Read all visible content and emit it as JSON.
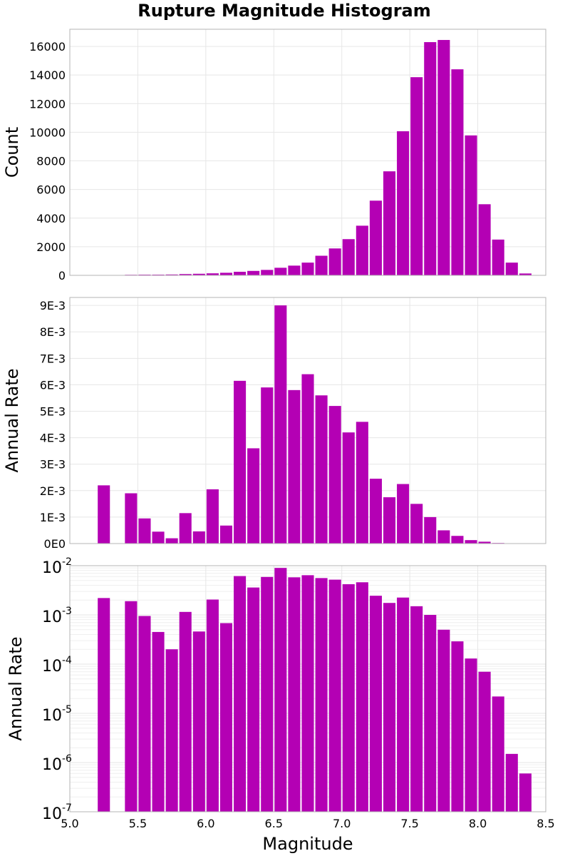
{
  "chart_data": {
    "title": "Rupture Magnitude Histogram",
    "xlabel": "Magnitude",
    "xlim": [
      5.0,
      8.5
    ],
    "xticks": [
      5.0,
      5.5,
      6.0,
      6.5,
      7.0,
      7.5,
      8.0,
      8.5
    ],
    "bar_color": "#b400b4",
    "bin_width": 0.1,
    "panels": [
      {
        "type": "bar",
        "ylabel": "Count",
        "yscale": "linear",
        "ylim": [
          0,
          17200
        ],
        "yticks": [
          0,
          2000,
          4000,
          6000,
          8000,
          10000,
          12000,
          14000,
          16000
        ],
        "ytick_labels": [
          "0",
          "2000",
          "4000",
          "6000",
          "8000",
          "10000",
          "12000",
          "14000",
          "16000"
        ],
        "x": [
          5.25,
          5.45,
          5.55,
          5.65,
          5.75,
          5.85,
          5.95,
          6.05,
          6.15,
          6.25,
          6.35,
          6.45,
          6.55,
          6.65,
          6.75,
          6.85,
          6.95,
          7.05,
          7.15,
          7.25,
          7.35,
          7.45,
          7.55,
          7.65,
          7.75,
          7.85,
          7.95,
          8.05,
          8.15,
          8.25,
          8.35
        ],
        "values": [
          15,
          40,
          50,
          50,
          60,
          90,
          110,
          140,
          180,
          250,
          310,
          380,
          530,
          680,
          890,
          1370,
          1880,
          2530,
          3470,
          5220,
          7270,
          10070,
          13850,
          16300,
          16450,
          14400,
          9780,
          4970,
          2500,
          890,
          130
        ]
      },
      {
        "type": "bar",
        "ylabel": "Annual Rate",
        "yscale": "linear",
        "ylim": [
          0,
          0.0093
        ],
        "yticks": [
          0,
          0.001,
          0.002,
          0.003,
          0.004,
          0.005,
          0.006,
          0.007,
          0.008,
          0.009
        ],
        "ytick_labels": [
          "0E0",
          "1E-3",
          "2E-3",
          "3E-3",
          "4E-3",
          "5E-3",
          "6E-3",
          "7E-3",
          "8E-3",
          "9E-3"
        ],
        "x": [
          5.25,
          5.45,
          5.55,
          5.65,
          5.75,
          5.85,
          5.95,
          6.05,
          6.15,
          6.25,
          6.35,
          6.45,
          6.55,
          6.65,
          6.75,
          6.85,
          6.95,
          7.05,
          7.15,
          7.25,
          7.35,
          7.45,
          7.55,
          7.65,
          7.75,
          7.85,
          7.95,
          8.05,
          8.15,
          8.25,
          8.35
        ],
        "values": [
          0.0022,
          0.0019,
          0.00095,
          0.00045,
          0.0002,
          0.00115,
          0.00046,
          0.00205,
          0.00068,
          0.00615,
          0.0036,
          0.0059,
          0.009,
          0.0058,
          0.0064,
          0.0056,
          0.0052,
          0.0042,
          0.0046,
          0.00245,
          0.00175,
          0.00225,
          0.0015,
          0.001,
          0.0005,
          0.00029,
          0.00013,
          7e-05,
          2.2e-05,
          1.5e-06,
          6e-07
        ]
      },
      {
        "type": "bar",
        "ylabel": "Annual Rate",
        "yscale": "log",
        "ylim": [
          1e-07,
          0.01
        ],
        "ytick_bases": [
          "10",
          "10",
          "10",
          "10",
          "10",
          "10"
        ],
        "ytick_exponents": [
          "-7",
          "-6",
          "-5",
          "-4",
          "-3",
          "-2"
        ],
        "x": [
          5.25,
          5.45,
          5.55,
          5.65,
          5.75,
          5.85,
          5.95,
          6.05,
          6.15,
          6.25,
          6.35,
          6.45,
          6.55,
          6.65,
          6.75,
          6.85,
          6.95,
          7.05,
          7.15,
          7.25,
          7.35,
          7.45,
          7.55,
          7.65,
          7.75,
          7.85,
          7.95,
          8.05,
          8.15,
          8.25,
          8.35
        ],
        "values": [
          0.0022,
          0.0019,
          0.00095,
          0.00045,
          0.0002,
          0.00115,
          0.00046,
          0.00205,
          0.00068,
          0.00615,
          0.0036,
          0.0059,
          0.009,
          0.0058,
          0.0064,
          0.0056,
          0.0052,
          0.0042,
          0.0046,
          0.00245,
          0.00175,
          0.00225,
          0.0015,
          0.001,
          0.0005,
          0.00029,
          0.00013,
          7e-05,
          2.2e-05,
          1.5e-06,
          6e-07
        ]
      }
    ]
  }
}
